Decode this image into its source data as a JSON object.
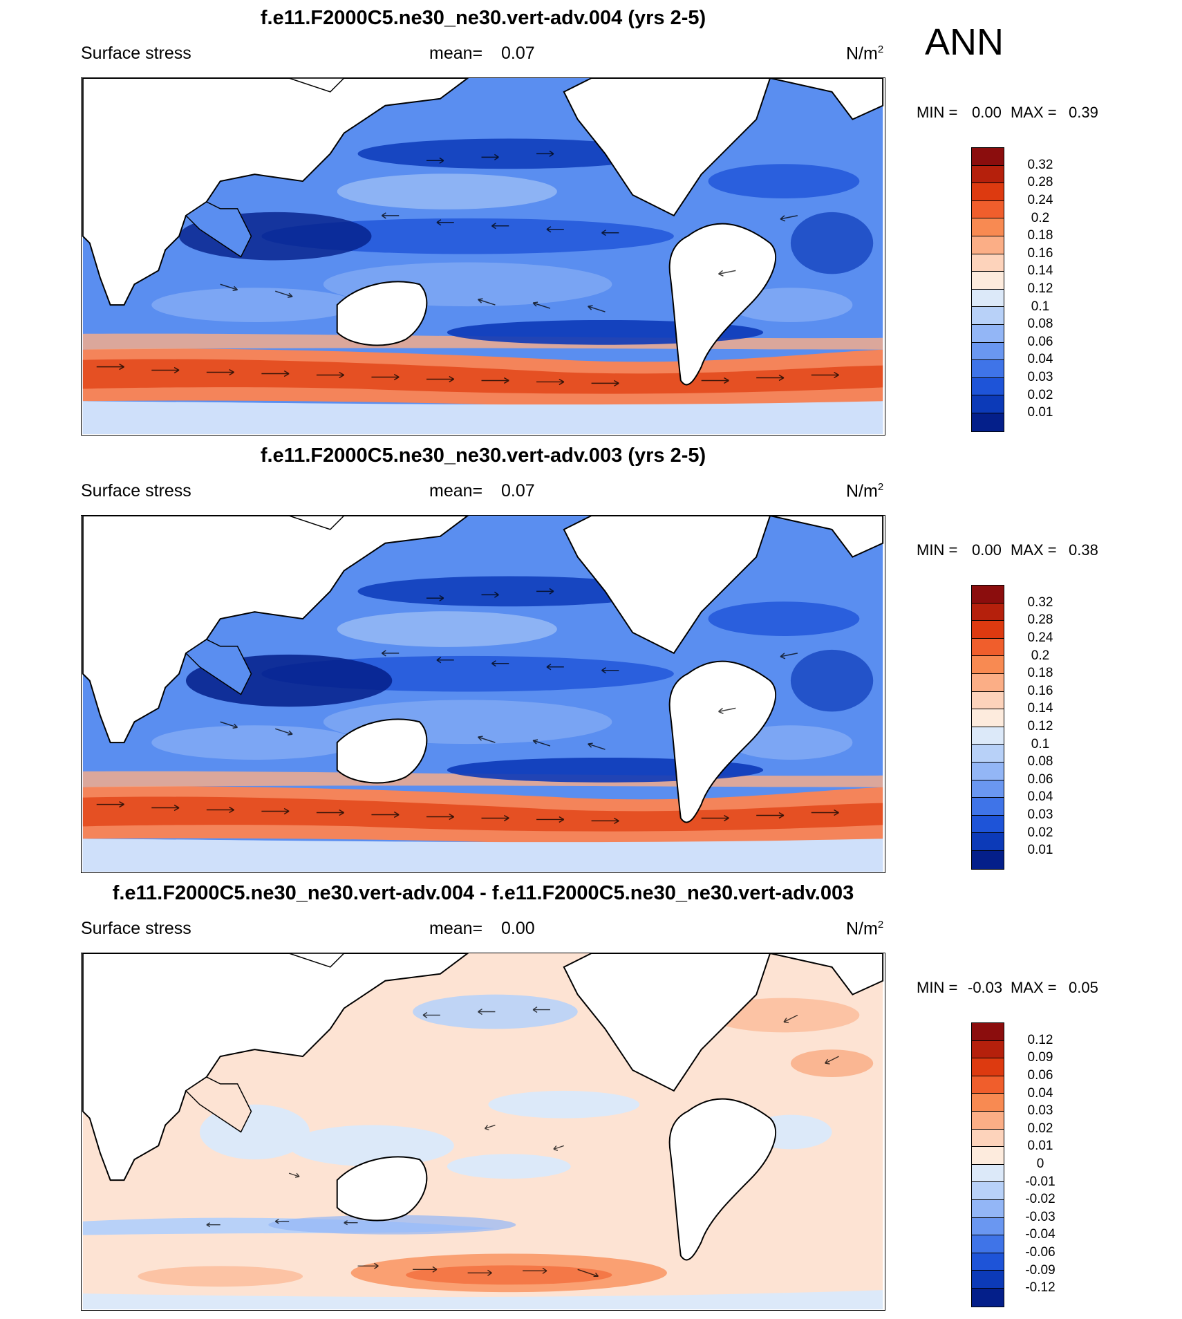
{
  "figure": {
    "season_label": "ANN",
    "colors": {
      "ocean_base": "#5a8ef0",
      "land": "#ffffff",
      "coast": "#000000",
      "diff_base": "#fbe0d0"
    }
  },
  "panels": [
    {
      "title": "f.e11.F2000C5.ne30_ne30.vert-adv.004 (yrs 2-5)",
      "variable": "Surface stress",
      "mean_label": "mean=",
      "mean_value": "0.07",
      "units": "N/m",
      "units_sup": "2",
      "min_label": "MIN =",
      "min_value": "0.00",
      "max_label": "MAX =",
      "max_value": "0.39",
      "colorbar": {
        "colors": [
          "#8b0d0d",
          "#b5200c",
          "#dd3a10",
          "#f05e2c",
          "#f88a52",
          "#fbae86",
          "#fdd3bb",
          "#fdebdd",
          "#dce9f9",
          "#b8d1f8",
          "#93b6f6",
          "#6a97f1",
          "#3f74e8",
          "#1e54d8",
          "#0c3ab8",
          "#041f8a"
        ],
        "labels": [
          "0.32",
          "0.28",
          "0.24",
          "0.2",
          "0.18",
          "0.16",
          "0.14",
          "0.12",
          "0.1",
          "0.08",
          "0.06",
          "0.04",
          "0.03",
          "0.02",
          "0.01"
        ]
      }
    },
    {
      "title": "f.e11.F2000C5.ne30_ne30.vert-adv.003 (yrs 2-5)",
      "variable": "Surface stress",
      "mean_label": "mean=",
      "mean_value": "0.07",
      "units": "N/m",
      "units_sup": "2",
      "min_label": "MIN =",
      "min_value": "0.00",
      "max_label": "MAX =",
      "max_value": "0.38",
      "colorbar": {
        "colors": [
          "#8b0d0d",
          "#b5200c",
          "#dd3a10",
          "#f05e2c",
          "#f88a52",
          "#fbae86",
          "#fdd3bb",
          "#fdebdd",
          "#dce9f9",
          "#b8d1f8",
          "#93b6f6",
          "#6a97f1",
          "#3f74e8",
          "#1e54d8",
          "#0c3ab8",
          "#041f8a"
        ],
        "labels": [
          "0.32",
          "0.28",
          "0.24",
          "0.2",
          "0.18",
          "0.16",
          "0.14",
          "0.12",
          "0.1",
          "0.08",
          "0.06",
          "0.04",
          "0.03",
          "0.02",
          "0.01"
        ]
      }
    },
    {
      "title": "f.e11.F2000C5.ne30_ne30.vert-adv.004 - f.e11.F2000C5.ne30_ne30.vert-adv.003",
      "variable": "Surface stress",
      "mean_label": "mean=",
      "mean_value": "0.00",
      "units": "N/m",
      "units_sup": "2",
      "min_label": "MIN =",
      "min_value": "-0.03",
      "max_label": "MAX =",
      "max_value": "0.05",
      "colorbar": {
        "colors": [
          "#8b0d0d",
          "#b5200c",
          "#dd3a10",
          "#f05e2c",
          "#f88a52",
          "#fbae86",
          "#fdd3bb",
          "#fdebdd",
          "#dce9f9",
          "#b8d1f8",
          "#93b6f6",
          "#6a97f1",
          "#3f74e8",
          "#1e54d8",
          "#0c3ab8",
          "#041f8a"
        ],
        "labels": [
          "0.12",
          "0.09",
          "0.06",
          "0.04",
          "0.03",
          "0.02",
          "0.01",
          "0",
          "-0.01",
          "-0.02",
          "-0.03",
          "-0.04",
          "-0.06",
          "-0.09",
          "-0.12"
        ]
      }
    }
  ]
}
